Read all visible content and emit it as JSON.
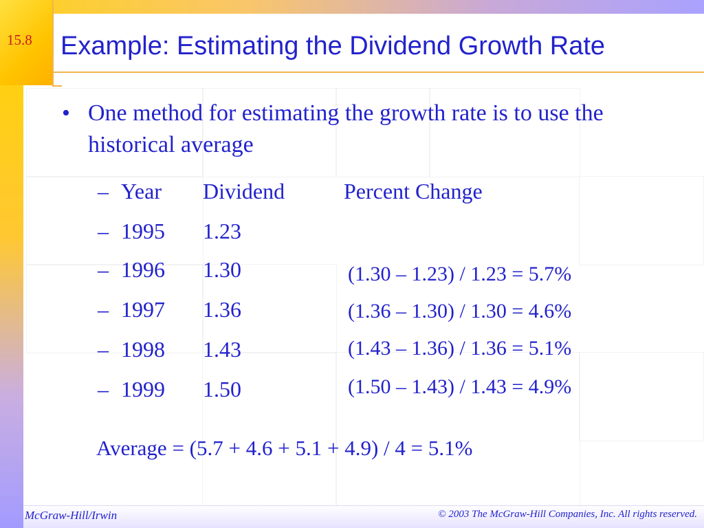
{
  "slide": {
    "number": "15.8",
    "title": "Example: Estimating the Dividend Growth Rate"
  },
  "bullet": {
    "symbol": "•",
    "text": "One method for estimating the growth rate is to use the historical average"
  },
  "table": {
    "dash": "–",
    "headers": {
      "year": "Year",
      "dividend": "Dividend",
      "percent_change": "Percent Change"
    },
    "rows": [
      {
        "year": "1995",
        "dividend": "1.23",
        "calculation": ""
      },
      {
        "year": "1996",
        "dividend": "1.30",
        "calculation": "(1.30 – 1.23) / 1.23 = 5.7%"
      },
      {
        "year": "1997",
        "dividend": "1.36",
        "calculation": "(1.36 – 1.30) / 1.30 = 4.6%"
      },
      {
        "year": "1998",
        "dividend": "1.43",
        "calculation": "(1.43 – 1.36) / 1.36 = 5.1%"
      },
      {
        "year": "1999",
        "dividend": "1.50",
        "calculation": "(1.50 – 1.43) / 1.43 = 4.9%"
      }
    ]
  },
  "average": "Average = (5.7 + 4.6 + 5.1 + 4.9) / 4 = 5.1%",
  "footer": {
    "left": "McGraw-Hill/Irwin",
    "right": "© 2003 The McGraw-Hill Companies, Inc. All rights reserved."
  },
  "colors": {
    "text": "#2222cc",
    "slide_number": "#cc1a1a",
    "accent_rule": "#f0b44c",
    "band_yellow": "#ffd400",
    "band_lavender": "#a29bff"
  }
}
